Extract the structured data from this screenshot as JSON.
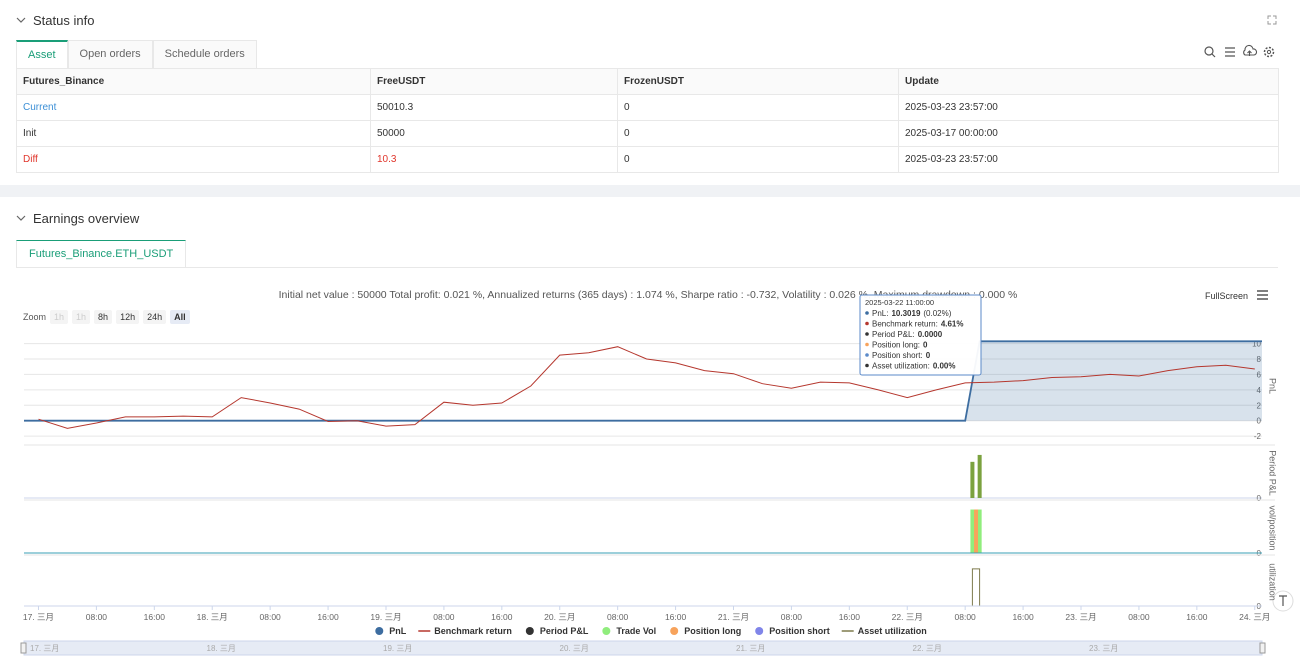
{
  "status": {
    "title": "Status info",
    "tabs": [
      "Asset",
      "Open orders",
      "Schedule orders"
    ],
    "table": {
      "columns": [
        "Futures_Binance",
        "FreeUSDT",
        "FrozenUSDT",
        "Update"
      ],
      "rows": [
        [
          "Current",
          "50010.3",
          "0",
          "2025-03-23 23:57:00"
        ],
        [
          "Init",
          "50000",
          "0",
          "2025-03-17 00:00:00"
        ],
        [
          "Diff",
          "10.3",
          "0",
          "2025-03-23 23:57:00"
        ]
      ]
    }
  },
  "earnings": {
    "title": "Earnings overview",
    "tab": "Futures_Binance.ETH_USDT",
    "summary": "Initial net value : 50000 Total profit: 0.021 %, Annualized returns (365 days) : 1.074 %, Sharpe ratio : -0.732, Volatility : 0.026 %, Maximum drawdown : 0.000 %",
    "fullscreen": "FullScreen",
    "zoom": {
      "label": "Zoom",
      "buttons": [
        "1h",
        "1h",
        "8h",
        "12h",
        "24h",
        "All"
      ]
    },
    "tooltip": {
      "date": "2025-03-22 11:00:00",
      "items": [
        {
          "label": "PnL:",
          "value": "10.3019",
          "note": "(0.02%)",
          "color": "#3d6da0"
        },
        {
          "label": "Benchmark return:",
          "value": "4.61%",
          "color": "#b5372e"
        },
        {
          "label": "Period P&L:",
          "value": "0.0000",
          "color": "#333333"
        },
        {
          "label": "Position long:",
          "value": "0",
          "color": "#f7a35c"
        },
        {
          "label": "Position short:",
          "value": "0",
          "color": "#5b8ac9"
        },
        {
          "label": "Asset utilization:",
          "value": "0.00%",
          "color": "#333333"
        }
      ]
    },
    "navigator": [
      "17. 三月",
      "18. 三月",
      "19. 三月",
      "20. 三月",
      "21. 三月",
      "22. 三月",
      "23. 三月"
    ]
  },
  "chart_data": [
    {
      "type": "line",
      "ylabel": "PnL",
      "grid": true,
      "xlim": [
        "2025-03-16 22:00",
        "2025-03-24 01:00"
      ],
      "ylim": [
        -2.5,
        11.5
      ],
      "yticks": [
        -2,
        0,
        2,
        4,
        6,
        8,
        10
      ],
      "series": [
        {
          "name": "PnL",
          "color": "#3d6da0",
          "legend_symbol": "circle",
          "area": true,
          "x": [
            "2025-03-16 22:00",
            "2025-03-22 08:00",
            "2025-03-22 10:00",
            "2025-03-24 01:00"
          ],
          "values": [
            0,
            0,
            10.3,
            10.3
          ]
        },
        {
          "name": "Benchmark return",
          "color": "#b5372e",
          "legend_symbol": "line",
          "x": [
            "2025-03-17 00:00",
            "2025-03-17 04:00",
            "2025-03-17 08:00",
            "2025-03-17 12:00",
            "2025-03-17 16:00",
            "2025-03-17 20:00",
            "2025-03-18 00:00",
            "2025-03-18 04:00",
            "2025-03-18 08:00",
            "2025-03-18 12:00",
            "2025-03-18 16:00",
            "2025-03-18 20:00",
            "2025-03-19 00:00",
            "2025-03-19 04:00",
            "2025-03-19 08:00",
            "2025-03-19 12:00",
            "2025-03-19 16:00",
            "2025-03-19 20:00",
            "2025-03-20 00:00",
            "2025-03-20 04:00",
            "2025-03-20 08:00",
            "2025-03-20 12:00",
            "2025-03-20 16:00",
            "2025-03-20 20:00",
            "2025-03-21 00:00",
            "2025-03-21 04:00",
            "2025-03-21 08:00",
            "2025-03-21 12:00",
            "2025-03-21 16:00",
            "2025-03-21 20:00",
            "2025-03-22 00:00",
            "2025-03-22 04:00",
            "2025-03-22 08:00",
            "2025-03-22 12:00",
            "2025-03-22 16:00",
            "2025-03-22 20:00",
            "2025-03-23 00:00",
            "2025-03-23 04:00",
            "2025-03-23 08:00",
            "2025-03-23 12:00",
            "2025-03-23 16:00",
            "2025-03-23 20:00",
            "2025-03-24 00:00"
          ],
          "values": [
            0.2,
            -1.0,
            -0.3,
            0.5,
            0.5,
            0.6,
            0.5,
            3.0,
            2.3,
            1.5,
            -0.1,
            0.0,
            -0.7,
            -0.5,
            2.4,
            2.0,
            2.3,
            4.5,
            8.5,
            8.8,
            9.6,
            8.0,
            7.5,
            6.5,
            6.1,
            4.8,
            4.2,
            5.0,
            4.9,
            4.0,
            3.0,
            4.0,
            4.9,
            5.0,
            5.2,
            5.6,
            5.7,
            6.0,
            5.8,
            6.5,
            7.0,
            7.2,
            6.7
          ]
        }
      ]
    },
    {
      "type": "bar",
      "ylabel": "Period P&L",
      "xlim": [
        "2025-03-16 22:00",
        "2025-03-24 01:00"
      ],
      "ylim": [
        0,
        6.5
      ],
      "yticks": [
        0
      ],
      "series": [
        {
          "name": "Period P&L",
          "color": "#333333",
          "bar_color": "#7ba23f",
          "legend_symbol": "circle",
          "x": [
            "2025-03-22 09:00",
            "2025-03-22 10:00"
          ],
          "values": [
            4.7,
            5.6
          ]
        }
      ]
    },
    {
      "type": "bar",
      "ylabel": "vol/position",
      "xlim": [
        "2025-03-16 22:00",
        "2025-03-24 01:00"
      ],
      "ylim": [
        0,
        1.15
      ],
      "yticks": [
        0
      ],
      "series": [
        {
          "name": "Trade Vol",
          "color": "#90ed7d",
          "legend_symbol": "circle",
          "x": [
            "2025-03-22 09:00",
            "2025-03-22 10:00"
          ],
          "values": [
            1,
            1
          ]
        },
        {
          "name": "Position long",
          "color": "#f7a35c",
          "legend_symbol": "circle",
          "x": [
            "2025-03-22 09:30"
          ],
          "values": [
            1
          ]
        },
        {
          "name": "Position short",
          "color": "#8085e9",
          "line_color": "#3a9fb5",
          "legend_symbol": "circle",
          "type": "line",
          "x": [
            "2025-03-16 22:00",
            "2025-03-24 01:00"
          ],
          "values": [
            0,
            0
          ]
        }
      ]
    },
    {
      "type": "line",
      "ylabel": "utilization",
      "xlim": [
        "2025-03-16 22:00",
        "2025-03-24 01:00"
      ],
      "ylim": [
        0,
        1.1
      ],
      "yticks": [
        0
      ],
      "xticks": [
        {
          "value": "2025-03-17 00:00",
          "label": "17. 三月"
        },
        {
          "value": "2025-03-17 08:00",
          "label": "08:00"
        },
        {
          "value": "2025-03-17 16:00",
          "label": "16:00"
        },
        {
          "value": "2025-03-18 00:00",
          "label": "18. 三月"
        },
        {
          "value": "2025-03-18 08:00",
          "label": "08:00"
        },
        {
          "value": "2025-03-18 16:00",
          "label": "16:00"
        },
        {
          "value": "2025-03-19 00:00",
          "label": "19. 三月"
        },
        {
          "value": "2025-03-19 08:00",
          "label": "08:00"
        },
        {
          "value": "2025-03-19 16:00",
          "label": "16:00"
        },
        {
          "value": "2025-03-20 00:00",
          "label": "20. 三月"
        },
        {
          "value": "2025-03-20 08:00",
          "label": "08:00"
        },
        {
          "value": "2025-03-20 16:00",
          "label": "16:00"
        },
        {
          "value": "2025-03-21 00:00",
          "label": "21. 三月"
        },
        {
          "value": "2025-03-21 08:00",
          "label": "08:00"
        },
        {
          "value": "2025-03-21 16:00",
          "label": "16:00"
        },
        {
          "value": "2025-03-22 00:00",
          "label": "22. 三月"
        },
        {
          "value": "2025-03-22 08:00",
          "label": "08:00"
        },
        {
          "value": "2025-03-22 16:00",
          "label": "16:00"
        },
        {
          "value": "2025-03-23 00:00",
          "label": "23. 三月"
        },
        {
          "value": "2025-03-23 08:00",
          "label": "08:00"
        },
        {
          "value": "2025-03-23 16:00",
          "label": "16:00"
        },
        {
          "value": "2025-03-24 00:00",
          "label": "24. 三月"
        }
      ],
      "series": [
        {
          "name": "Asset utilization",
          "color": "#7d7a4c",
          "legend_symbol": "line",
          "x": [
            "2025-03-16 22:00",
            "2025-03-22 09:00",
            "2025-03-22 09:00",
            "2025-03-22 10:00",
            "2025-03-22 10:00",
            "2025-03-24 01:00"
          ],
          "values": [
            0,
            0,
            0.85,
            0.85,
            0,
            0
          ]
        }
      ]
    }
  ]
}
